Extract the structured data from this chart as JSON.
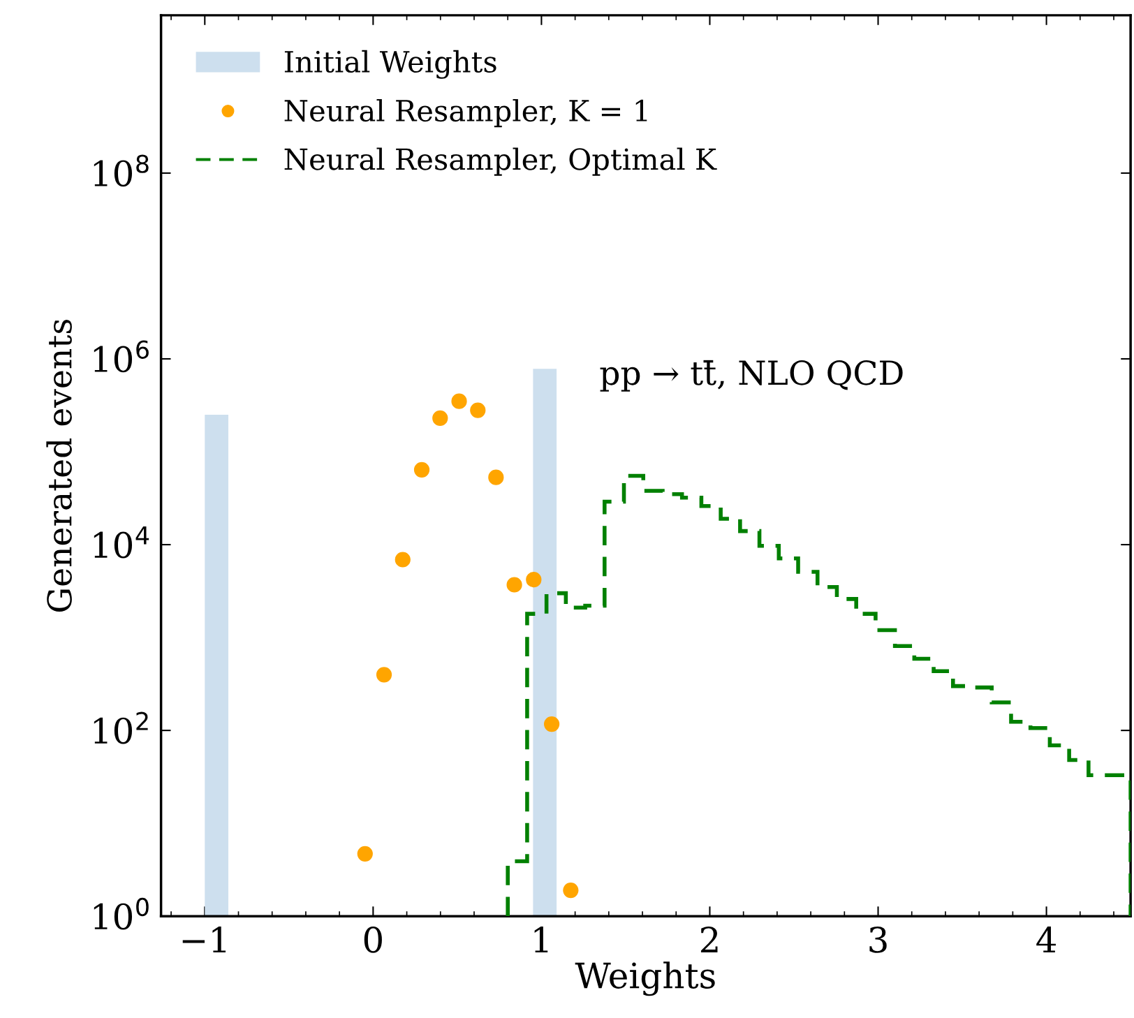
{
  "chart_data": {
    "type": "histogram",
    "xlabel": "Weights",
    "ylabel": "Generated events",
    "log": "y",
    "xlim": [
      -1.26,
      4.5
    ],
    "ylim": [
      1,
      5000000000
    ],
    "xticks": [
      {
        "value": -1,
        "label": "−1"
      },
      0,
      1,
      2,
      3,
      4
    ],
    "yticks": [
      {
        "value": 1,
        "label": "10$^{0}$"
      },
      {
        "value": 100,
        "label": "10$^{2}$"
      },
      {
        "value": 10000,
        "label": "10$^{4}$"
      },
      {
        "value": 1000000,
        "label": "10$^{6}$"
      },
      {
        "value": 100000000,
        "label": "10$^{8}$"
      }
    ],
    "grid": false,
    "legend": "top left",
    "annotations": [
      "pp → tt̄, NLO QCD"
    ],
    "series": [
      {
        "name": "Initial Weights",
        "color": "#cddfee",
        "bins": [
          -1.0,
          -0.86,
          0.95,
          1.09
        ],
        "values": [
          250000,
          null,
          780000
        ]
      },
      {
        "name": "Neural Resampler, K = 1",
        "type": "scatter",
        "color": "#ffa500",
        "marker": "circle",
        "x": [
          -0.048,
          0.065,
          0.176,
          0.289,
          0.398,
          0.511,
          0.622,
          0.73,
          0.839,
          0.954,
          1.061,
          1.174
        ],
        "values": [
          4.7,
          398,
          6900,
          64000,
          230000,
          350000,
          280000,
          53000,
          3700,
          4200,
          117,
          1.9
        ]
      },
      {
        "name": "Neural Resampler, Optimal K",
        "color": "#008000",
        "line_style": "dashed",
        "bins": [
          0.8,
          0.915,
          1.03,
          1.145,
          1.26,
          1.375,
          1.49,
          1.605,
          1.72,
          1.835,
          1.95,
          2.065,
          2.18,
          2.295,
          2.41,
          2.525,
          2.64,
          2.755,
          2.87,
          2.985,
          3.1,
          3.215,
          3.33,
          3.445,
          3.56,
          3.675,
          3.79,
          3.905,
          4.02,
          4.135,
          4.25,
          4.5
        ],
        "values": [
          3.9,
          1800,
          3000,
          2100,
          2200,
          29000,
          55000,
          38000,
          35000,
          32000,
          26000,
          19000,
          14000,
          9700,
          7100,
          5100,
          3500,
          2600,
          1800,
          1200,
          810,
          590,
          435,
          300,
          290,
          200,
          124,
          106,
          69,
          48,
          33
        ]
      }
    ]
  }
}
